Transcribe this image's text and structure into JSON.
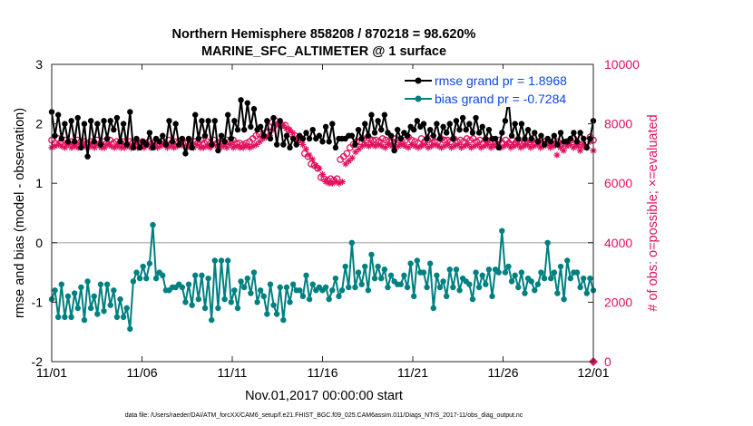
{
  "chart_data": {
    "type": "line",
    "title": [
      "Northern Hemisphere 858208 / 870218 = 98.620%",
      "MARINE_SFC_ALTIMETER @ 1 surface"
    ],
    "xlabel": "Nov.01,2017 00:00:00 start",
    "ylabel": "rmse and bias (model - observation)",
    "ylabel_right": "# of obs: o=possible; ×=evaluated",
    "x_ticks": [
      "11/01",
      "11/06",
      "11/11",
      "11/16",
      "11/21",
      "11/26",
      "12/01"
    ],
    "x_tick_days": [
      0,
      5,
      10,
      15,
      20,
      25,
      30
    ],
    "xlim_days": [
      0,
      30
    ],
    "ylim": [
      -2,
      3
    ],
    "y_ticks": [
      -2,
      -1,
      0,
      1,
      2,
      3
    ],
    "ylim_right": [
      0,
      10000
    ],
    "y_ticks_right": [
      0,
      2000,
      4000,
      6000,
      8000,
      10000
    ],
    "zero_line": 0,
    "legend": [
      {
        "label": "rmse grand pr = 1.8968",
        "color": "#000000"
      },
      {
        "label": "bias grand pr = -0.7284",
        "color": "#008080"
      }
    ],
    "series": [
      {
        "name": "rmse",
        "axis": "left",
        "color": "#000000",
        "marker": "circle",
        "values": [
          2.2,
          1.8,
          2.15,
          1.75,
          2.0,
          1.7,
          2.05,
          1.7,
          2.1,
          1.6,
          2.0,
          1.45,
          2.05,
          1.7,
          2.0,
          1.65,
          2.05,
          1.75,
          2.05,
          1.9,
          2.1,
          1.7,
          2.0,
          1.65,
          2.2,
          1.6,
          1.75,
          1.6,
          1.7,
          1.65,
          1.85,
          1.6,
          1.75,
          1.7,
          1.8,
          1.65,
          2.05,
          1.7,
          2.0,
          1.65,
          1.75,
          1.5,
          1.75,
          1.6,
          2.15,
          1.75,
          2.05,
          1.8,
          2.05,
          1.65,
          2.05,
          1.55,
          1.8,
          1.7,
          2.15,
          1.75,
          2.05,
          1.9,
          2.4,
          1.9,
          2.35,
          1.95,
          2.25,
          1.9,
          1.95,
          1.8,
          2.05,
          1.75,
          2.1,
          1.65,
          2.05,
          1.65,
          1.8,
          1.6,
          1.75,
          1.65,
          1.8,
          1.75,
          1.85,
          1.75,
          1.9,
          1.75,
          1.8,
          1.7,
          1.95,
          1.7,
          2.0,
          1.6,
          1.75,
          1.75,
          1.75,
          1.8,
          1.8,
          1.65,
          1.9,
          1.75,
          2.0,
          1.8,
          2.15,
          1.85,
          2.05,
          1.9,
          2.15,
          1.85,
          1.8,
          1.55,
          1.9,
          1.75,
          1.85,
          1.8,
          1.95,
          1.9,
          2.05,
          1.95,
          2.0,
          1.75,
          1.9,
          1.8,
          2.0,
          1.75,
          1.95,
          1.85,
          2.0,
          1.75,
          2.05,
          1.9,
          2.1,
          1.9,
          2.0,
          1.85,
          2.1,
          1.85,
          1.95,
          1.75,
          1.9,
          1.75,
          1.75,
          1.6,
          1.85,
          2.05,
          2.4,
          1.8,
          2.0,
          1.75,
          2.0,
          1.75,
          1.9,
          1.75,
          1.85,
          1.7,
          1.8,
          1.65,
          1.75,
          1.7,
          1.8,
          1.65,
          1.85,
          1.7,
          1.7,
          1.75,
          1.85,
          1.7,
          1.85,
          1.75,
          1.6,
          1.75,
          2.05
        ]
      },
      {
        "name": "bias",
        "axis": "left",
        "color": "#008080",
        "marker": "circle",
        "values": [
          -0.95,
          -0.8,
          -1.25,
          -0.7,
          -1.25,
          -0.9,
          -1.25,
          -0.85,
          -1.1,
          -0.75,
          -1.3,
          -0.65,
          -1.1,
          -0.9,
          -1.2,
          -0.7,
          -1.15,
          -0.7,
          -1.05,
          -0.8,
          -1.25,
          -0.95,
          -1.25,
          -1.1,
          -1.45,
          -0.65,
          -0.5,
          -0.6,
          -0.4,
          -0.6,
          -0.35,
          0.3,
          -0.6,
          -0.5,
          -0.55,
          -0.8,
          -0.8,
          -0.75,
          -0.75,
          -0.7,
          -0.75,
          -1.0,
          -0.7,
          -1.05,
          -0.55,
          -0.95,
          -0.55,
          -1.1,
          -0.6,
          -1.3,
          -0.3,
          -1.1,
          -0.3,
          -0.95,
          -0.3,
          -1.0,
          -0.8,
          -1.1,
          -0.65,
          -0.75,
          -0.6,
          -0.85,
          -0.5,
          -1.0,
          -0.8,
          -0.9,
          -1.2,
          -0.7,
          -1.05,
          -1.2,
          -0.75,
          -1.3,
          -0.75,
          -1.0,
          -0.7,
          -0.8,
          -0.8,
          -0.9,
          -0.55,
          -0.95,
          -0.7,
          -0.8,
          -0.75,
          -0.8,
          -0.75,
          -0.95,
          -0.8,
          -0.6,
          -0.9,
          -0.8,
          -0.4,
          -0.75,
          0.0,
          -0.75,
          -0.5,
          -0.7,
          -0.4,
          -0.8,
          -0.2,
          -0.6,
          -0.4,
          -0.6,
          -0.45,
          -0.75,
          -0.55,
          -0.65,
          -0.7,
          -0.7,
          -0.55,
          -0.75,
          -0.35,
          -0.9,
          -0.3,
          -0.5,
          -0.5,
          -0.75,
          -0.35,
          -1.1,
          -0.55,
          -0.75,
          -0.65,
          -0.9,
          -0.45,
          -0.75,
          -0.45,
          -0.8,
          -0.6,
          -0.65,
          -0.7,
          -0.95,
          -0.5,
          -0.75,
          -0.55,
          -0.7,
          -0.45,
          -0.9,
          -0.45,
          -0.5,
          0.2,
          -0.5,
          -0.4,
          -0.65,
          -0.55,
          -0.75,
          -0.5,
          -0.85,
          -0.6,
          -0.65,
          -0.8,
          -0.7,
          -0.5,
          -0.6,
          0.0,
          -0.6,
          -0.5,
          -0.85,
          -0.4,
          -0.95,
          -0.3,
          -0.6,
          -0.5,
          -0.5,
          -0.75,
          -0.6,
          -0.85,
          -0.6,
          -0.8
        ]
      },
      {
        "name": "possible",
        "axis": "right",
        "color": "#e0115f",
        "marker": "o",
        "values": [
          7450,
          7350,
          7500,
          7400,
          7450,
          7350,
          7400,
          7350,
          7450,
          7400,
          7400,
          7350,
          7400,
          7350,
          7450,
          7350,
          7400,
          7350,
          7450,
          7350,
          7400,
          7350,
          7400,
          7350,
          7400,
          7350,
          7400,
          7350,
          7400,
          7350,
          7400,
          7350,
          7400,
          7350,
          7400,
          7350,
          7450,
          7350,
          7400,
          7350,
          7450,
          7350,
          7400,
          7350,
          7400,
          7350,
          7450,
          7350,
          7400,
          7350,
          7450,
          7350,
          7400,
          7350,
          7450,
          7400,
          7450,
          7350,
          7350,
          7300,
          7350,
          7400,
          7500,
          7600,
          7650,
          7600,
          7700,
          7900,
          8050,
          8100,
          8000,
          7950,
          7950,
          7800,
          7650,
          7600,
          7500,
          7450,
          7000,
          6900,
          6650,
          6600,
          6500,
          6200,
          6150,
          6100,
          6150,
          6100,
          6150,
          6800,
          6900,
          7000,
          7200,
          7300,
          7400,
          7400,
          7500,
          7450,
          7500,
          7450,
          7450,
          7400,
          7500,
          7450,
          7400,
          7400,
          7500,
          7450,
          7400,
          7450,
          7550,
          7450,
          7400,
          7350,
          7500,
          7400,
          7450,
          7500,
          7400,
          7400,
          7500,
          7450,
          7450,
          7400,
          7500,
          7400,
          7450,
          7400,
          7500,
          7450,
          7500,
          7400,
          7450,
          7350,
          7450,
          7350,
          7400,
          7350,
          7450,
          7350,
          7450,
          7350,
          7450,
          7350,
          7400,
          7350,
          7400,
          7350,
          7450,
          7350,
          7400,
          7350,
          7400,
          7400,
          7350,
          7300,
          7400,
          7300,
          7350,
          7400,
          7450,
          7500,
          7350,
          7300,
          7250,
          7400,
          7550,
          7450
        ]
      },
      {
        "name": "evaluated",
        "axis": "right",
        "color": "#e0115f",
        "marker": "*",
        "values": [
          7200,
          7250,
          7300,
          7250,
          7200,
          7300,
          7200,
          7250,
          7200,
          7300,
          7250,
          7200,
          7250,
          7200,
          7300,
          7200,
          7200,
          7300,
          7250,
          7200,
          7250,
          7200,
          7200,
          7250,
          7200,
          7300,
          7200,
          7250,
          7200,
          7300,
          7200,
          7250,
          7200,
          7250,
          7300,
          7200,
          7250,
          7200,
          7250,
          7300,
          7250,
          7200,
          7250,
          7200,
          7300,
          7200,
          7200,
          7250,
          7200,
          7300,
          7250,
          7200,
          7250,
          7200,
          7300,
          7200,
          7250,
          7200,
          7200,
          7250,
          7200,
          7250,
          7300,
          7400,
          7500,
          7550,
          7600,
          7800,
          7950,
          8000,
          7950,
          7850,
          7800,
          7700,
          7500,
          7450,
          7300,
          7150,
          6950,
          6800,
          6600,
          6500,
          6300,
          6050,
          6000,
          6000,
          6050,
          6000,
          6050,
          6650,
          6750,
          6850,
          7050,
          7150,
          7250,
          7300,
          7250,
          7300,
          7250,
          7300,
          7250,
          7200,
          7300,
          7250,
          7200,
          7250,
          7300,
          7250,
          7200,
          7300,
          7250,
          7200,
          7250,
          7300,
          7200,
          7250,
          7300,
          7250,
          7200,
          7250,
          7300,
          7200,
          7250,
          7300,
          7200,
          7250,
          7300,
          7200,
          7250,
          7300,
          7200,
          7250,
          7300,
          7200,
          7250,
          7300,
          7200,
          7250,
          7300,
          7200,
          7250,
          7300,
          7200,
          7250,
          7300,
          7200,
          7250,
          7300,
          7200,
          7250,
          7300,
          7200,
          7250,
          6950,
          7200,
          7100,
          7250,
          7300,
          7200,
          7250,
          7100,
          7300,
          7200,
          7400,
          7100
        ]
      }
    ],
    "footer": "data file: /Users/raeder/DAI/ATM_forcXX/CAM6_setup/f.e21.FHIST_BGC.f09_025.CAM6assim.011/Diags_NTrS_2017-11/obs_diag_output.nc"
  }
}
